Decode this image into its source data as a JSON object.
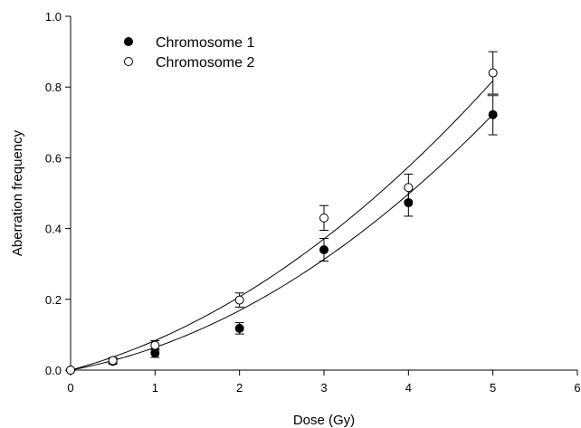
{
  "chart_data": {
    "type": "scatter",
    "title": "",
    "xlabel": "Dose (Gy)",
    "ylabel": "Aberration frequency",
    "xlim": [
      0,
      6
    ],
    "ylim": [
      0,
      1.0
    ],
    "xticks": [
      0,
      1,
      2,
      3,
      4,
      5,
      6
    ],
    "xtick_labels": [
      "0",
      "1",
      "2",
      "3",
      "4",
      "5",
      "6"
    ],
    "yticks": [
      0.0,
      0.2,
      0.4,
      0.6,
      0.8,
      1.0
    ],
    "ytick_labels": [
      "0.0",
      "0.2",
      "0.4",
      "0.6",
      "0.8",
      "1.0"
    ],
    "grid": false,
    "legend_position": "top-left",
    "series": [
      {
        "name": "Chromosome 1",
        "marker": "filled-circle",
        "color": "#000000",
        "x": [
          0,
          0.5,
          1,
          2,
          3,
          4,
          5
        ],
        "y": [
          0.0,
          0.025,
          0.048,
          0.118,
          0.34,
          0.473,
          0.722
        ],
        "err": [
          0.0,
          0.008,
          0.012,
          0.016,
          0.032,
          0.038,
          0.057
        ],
        "fit": {
          "type": "linear-quadratic",
          "alpha": 0.044,
          "beta": 0.0201
        }
      },
      {
        "name": "Chromosome 2",
        "marker": "open-circle",
        "color": "#000000",
        "x": [
          0,
          0.5,
          1,
          2,
          3,
          4,
          5
        ],
        "y": [
          0.0,
          0.027,
          0.07,
          0.198,
          0.43,
          0.516,
          0.84
        ],
        "err": [
          0.0,
          0.008,
          0.013,
          0.02,
          0.035,
          0.038,
          0.06
        ],
        "fit": {
          "type": "linear-quadratic",
          "alpha": 0.0636,
          "beta": 0.02
        }
      }
    ],
    "annotations": [
      {
        "type": "mean-bar",
        "x": 5,
        "y": 0.778
      }
    ]
  }
}
